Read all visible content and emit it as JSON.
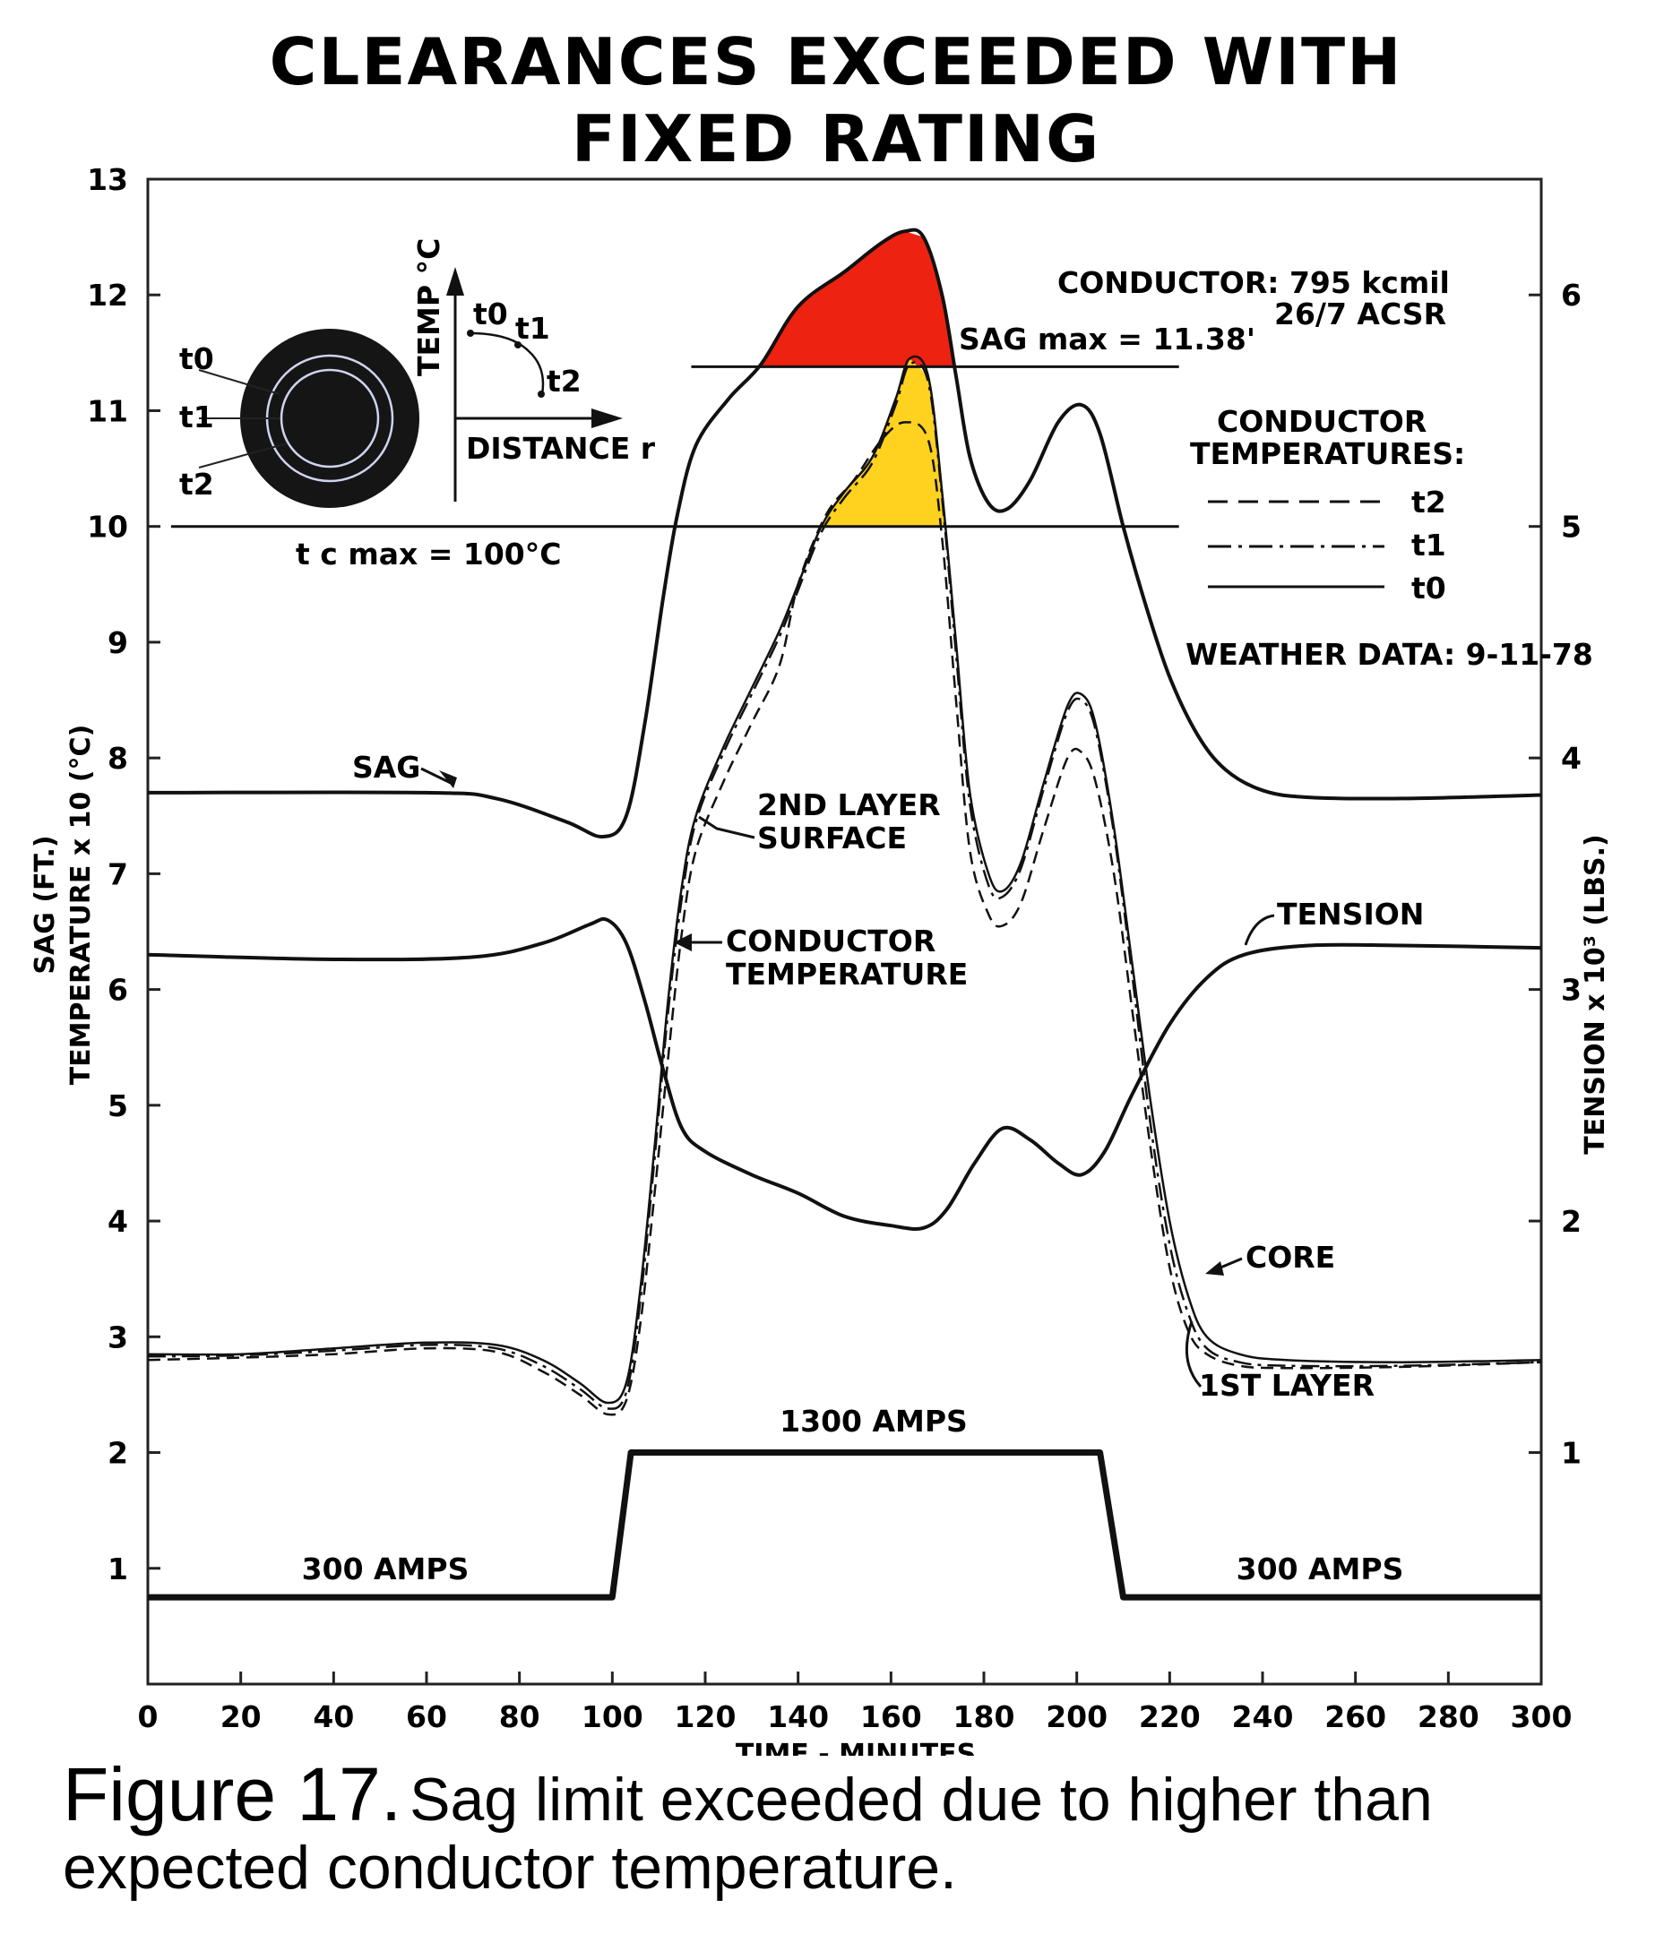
{
  "chart_data": {
    "type": "line",
    "title": [
      "CLEARANCES EXCEEDED WITH",
      "FIXED RATING"
    ],
    "xlabel": "TIME - MINUTES",
    "ylabel_left": [
      "SAG (FT.)",
      "TEMPERATURE x 10 (°C)"
    ],
    "ylabel_right": "TENSION x 10³ (LBS.)",
    "xlim": [
      0,
      300
    ],
    "ylim_left": [
      0,
      13
    ],
    "ylim_right": [
      0,
      6.5
    ],
    "xticks": [
      "0",
      "20",
      "40",
      "60",
      "80",
      "100",
      "120",
      "140",
      "160",
      "180",
      "200",
      "220",
      "240",
      "260",
      "280",
      "300"
    ],
    "yticks_left": [
      "1",
      "2",
      "3",
      "4",
      "5",
      "6",
      "7",
      "8",
      "9",
      "10",
      "11",
      "12",
      "13"
    ],
    "yticks_right": [
      "1",
      "2",
      "3",
      "4",
      "5",
      "6"
    ],
    "legend_placement": "right",
    "conductor_info": [
      "CONDUCTOR: 795 kcmil",
      "26/7 ACSR"
    ],
    "legend_title": [
      "CONDUCTOR",
      "TEMPERATURES:"
    ],
    "legend": [
      {
        "label": "t2",
        "style": "dashed"
      },
      {
        "label": "t1",
        "style": "dash-dot"
      },
      {
        "label": "t0",
        "style": "solid"
      }
    ],
    "weather": "WEATHER DATA: 9-11-78",
    "sag_max_label": "SAG max = 11.38'",
    "sag_max": 11.38,
    "tc_max_label": "t c max = 100°C",
    "tc_max": 10,
    "fill_colors": {
      "sag_excess": "#ee2211",
      "temp_excess": "#ffd21f"
    },
    "inset": {
      "y_label": "TEMP °C",
      "x_label": "DISTANCE r",
      "ring_labels": [
        "t0",
        "t1",
        "t2"
      ],
      "curve_labels": [
        "t0",
        "t1",
        "t2"
      ]
    },
    "annotations": {
      "sag": "SAG",
      "surface": [
        "2ND LAYER",
        "SURFACE"
      ],
      "conductor_temp": [
        "CONDUCTOR",
        "TEMPERATURE"
      ],
      "tension": "TENSION",
      "core": "CORE",
      "first_layer": "1ST LAYER",
      "amps_high": "1300 AMPS",
      "amps_low_left": "300 AMPS",
      "amps_low_right": "300 AMPS"
    },
    "series": [
      {
        "name": "SAG",
        "axis": "left",
        "points": [
          [
            0,
            7.7
          ],
          [
            60,
            7.7
          ],
          [
            75,
            7.65
          ],
          [
            90,
            7.45
          ],
          [
            98,
            7.32
          ],
          [
            103,
            7.5
          ],
          [
            107,
            8.3
          ],
          [
            111,
            9.4
          ],
          [
            114,
            10.1
          ],
          [
            118,
            10.7
          ],
          [
            125,
            11.1
          ],
          [
            132,
            11.4
          ],
          [
            140,
            11.9
          ],
          [
            150,
            12.2
          ],
          [
            158,
            12.45
          ],
          [
            163,
            12.55
          ],
          [
            167,
            12.5
          ],
          [
            171,
            12.0
          ],
          [
            174,
            11.3
          ],
          [
            177,
            10.6
          ],
          [
            181,
            10.2
          ],
          [
            185,
            10.15
          ],
          [
            190,
            10.4
          ],
          [
            196,
            10.9
          ],
          [
            201,
            11.05
          ],
          [
            205,
            10.8
          ],
          [
            210,
            10.0
          ],
          [
            215,
            9.3
          ],
          [
            220,
            8.7
          ],
          [
            226,
            8.2
          ],
          [
            232,
            7.9
          ],
          [
            240,
            7.72
          ],
          [
            250,
            7.66
          ],
          [
            270,
            7.65
          ],
          [
            300,
            7.68
          ]
        ]
      },
      {
        "name": "CORE",
        "axis": "left",
        "points": [
          [
            0,
            2.85
          ],
          [
            20,
            2.85
          ],
          [
            40,
            2.9
          ],
          [
            60,
            2.95
          ],
          [
            75,
            2.93
          ],
          [
            85,
            2.8
          ],
          [
            93,
            2.6
          ],
          [
            99,
            2.43
          ],
          [
            103,
            2.6
          ],
          [
            106,
            3.4
          ],
          [
            109,
            4.6
          ],
          [
            112,
            5.9
          ],
          [
            115,
            6.9
          ],
          [
            118,
            7.5
          ],
          [
            124,
            8.1
          ],
          [
            130,
            8.6
          ],
          [
            136,
            9.1
          ],
          [
            140,
            9.5
          ],
          [
            145,
            10.0
          ],
          [
            150,
            10.3
          ],
          [
            156,
            10.6
          ],
          [
            161,
            11.1
          ],
          [
            164,
            11.45
          ],
          [
            168,
            11.3
          ],
          [
            171,
            10.3
          ],
          [
            174,
            9.0
          ],
          [
            177,
            7.7
          ],
          [
            181,
            7.0
          ],
          [
            184,
            6.85
          ],
          [
            188,
            7.1
          ],
          [
            193,
            7.8
          ],
          [
            198,
            8.45
          ],
          [
            201,
            8.55
          ],
          [
            204,
            8.3
          ],
          [
            208,
            7.4
          ],
          [
            212,
            6.2
          ],
          [
            216,
            5.0
          ],
          [
            220,
            4.0
          ],
          [
            224,
            3.35
          ],
          [
            228,
            3.0
          ],
          [
            235,
            2.85
          ],
          [
            245,
            2.8
          ],
          [
            270,
            2.78
          ],
          [
            300,
            2.8
          ]
        ]
      },
      {
        "name": "1ST LAYER",
        "axis": "left",
        "points": [
          [
            0,
            2.83
          ],
          [
            20,
            2.84
          ],
          [
            40,
            2.88
          ],
          [
            60,
            2.93
          ],
          [
            75,
            2.9
          ],
          [
            85,
            2.75
          ],
          [
            93,
            2.55
          ],
          [
            99,
            2.38
          ],
          [
            103,
            2.52
          ],
          [
            106,
            3.3
          ],
          [
            109,
            4.5
          ],
          [
            112,
            5.8
          ],
          [
            115,
            6.8
          ],
          [
            118,
            7.45
          ],
          [
            124,
            8.05
          ],
          [
            130,
            8.55
          ],
          [
            136,
            9.05
          ],
          [
            140,
            9.45
          ],
          [
            145,
            9.95
          ],
          [
            150,
            10.25
          ],
          [
            156,
            10.55
          ],
          [
            161,
            11.05
          ],
          [
            164,
            11.4
          ],
          [
            168,
            11.25
          ],
          [
            171,
            10.25
          ],
          [
            174,
            8.9
          ],
          [
            177,
            7.6
          ],
          [
            181,
            6.9
          ],
          [
            184,
            6.8
          ],
          [
            188,
            7.05
          ],
          [
            193,
            7.75
          ],
          [
            198,
            8.4
          ],
          [
            201,
            8.5
          ],
          [
            204,
            8.25
          ],
          [
            208,
            7.35
          ],
          [
            212,
            6.1
          ],
          [
            216,
            4.8
          ],
          [
            220,
            3.8
          ],
          [
            224,
            3.2
          ],
          [
            228,
            2.9
          ],
          [
            235,
            2.78
          ],
          [
            245,
            2.75
          ],
          [
            270,
            2.75
          ],
          [
            300,
            2.78
          ]
        ]
      },
      {
        "name": "2ND LAYER SURFACE",
        "axis": "left",
        "points": [
          [
            0,
            2.8
          ],
          [
            20,
            2.82
          ],
          [
            40,
            2.85
          ],
          [
            60,
            2.9
          ],
          [
            75,
            2.87
          ],
          [
            85,
            2.7
          ],
          [
            93,
            2.5
          ],
          [
            99,
            2.33
          ],
          [
            103,
            2.45
          ],
          [
            106,
            3.1
          ],
          [
            109,
            4.2
          ],
          [
            112,
            5.4
          ],
          [
            115,
            6.5
          ],
          [
            118,
            7.2
          ],
          [
            124,
            7.8
          ],
          [
            130,
            8.3
          ],
          [
            136,
            8.8
          ],
          [
            140,
            9.5
          ],
          [
            146,
            10.1
          ],
          [
            152,
            10.4
          ],
          [
            158,
            10.75
          ],
          [
            163,
            10.9
          ],
          [
            168,
            10.75
          ],
          [
            171,
            9.9
          ],
          [
            174,
            8.5
          ],
          [
            177,
            7.2
          ],
          [
            181,
            6.65
          ],
          [
            184,
            6.55
          ],
          [
            188,
            6.75
          ],
          [
            193,
            7.4
          ],
          [
            198,
            8.0
          ],
          [
            201,
            8.05
          ],
          [
            204,
            7.8
          ],
          [
            208,
            7.0
          ],
          [
            212,
            5.8
          ],
          [
            216,
            4.6
          ],
          [
            220,
            3.6
          ],
          [
            224,
            3.05
          ],
          [
            228,
            2.85
          ],
          [
            235,
            2.75
          ],
          [
            245,
            2.73
          ],
          [
            270,
            2.74
          ],
          [
            300,
            2.78
          ]
        ]
      },
      {
        "name": "TENSION",
        "axis": "right",
        "points": [
          [
            0,
            3.15
          ],
          [
            40,
            3.13
          ],
          [
            70,
            3.14
          ],
          [
            85,
            3.2
          ],
          [
            95,
            3.28
          ],
          [
            99,
            3.3
          ],
          [
            103,
            3.2
          ],
          [
            107,
            2.95
          ],
          [
            111,
            2.65
          ],
          [
            115,
            2.4
          ],
          [
            120,
            2.3
          ],
          [
            130,
            2.2
          ],
          [
            140,
            2.12
          ],
          [
            150,
            2.02
          ],
          [
            160,
            1.98
          ],
          [
            167,
            1.97
          ],
          [
            172,
            2.05
          ],
          [
            178,
            2.25
          ],
          [
            184,
            2.4
          ],
          [
            190,
            2.35
          ],
          [
            196,
            2.25
          ],
          [
            201,
            2.2
          ],
          [
            206,
            2.3
          ],
          [
            212,
            2.55
          ],
          [
            220,
            2.85
          ],
          [
            228,
            3.05
          ],
          [
            236,
            3.15
          ],
          [
            250,
            3.19
          ],
          [
            270,
            3.19
          ],
          [
            300,
            3.18
          ]
        ]
      },
      {
        "name": "CURRENT",
        "axis": "left",
        "points": [
          [
            0,
            0.75
          ],
          [
            100,
            0.75
          ],
          [
            104,
            2.0
          ],
          [
            205,
            2.0
          ],
          [
            210,
            0.75
          ],
          [
            300,
            0.75
          ]
        ]
      }
    ]
  },
  "caption": {
    "figure": "Figure 17.",
    "text_line1": "Sag limit exceeded due to higher than",
    "text_line2": "expected conductor temperature."
  }
}
